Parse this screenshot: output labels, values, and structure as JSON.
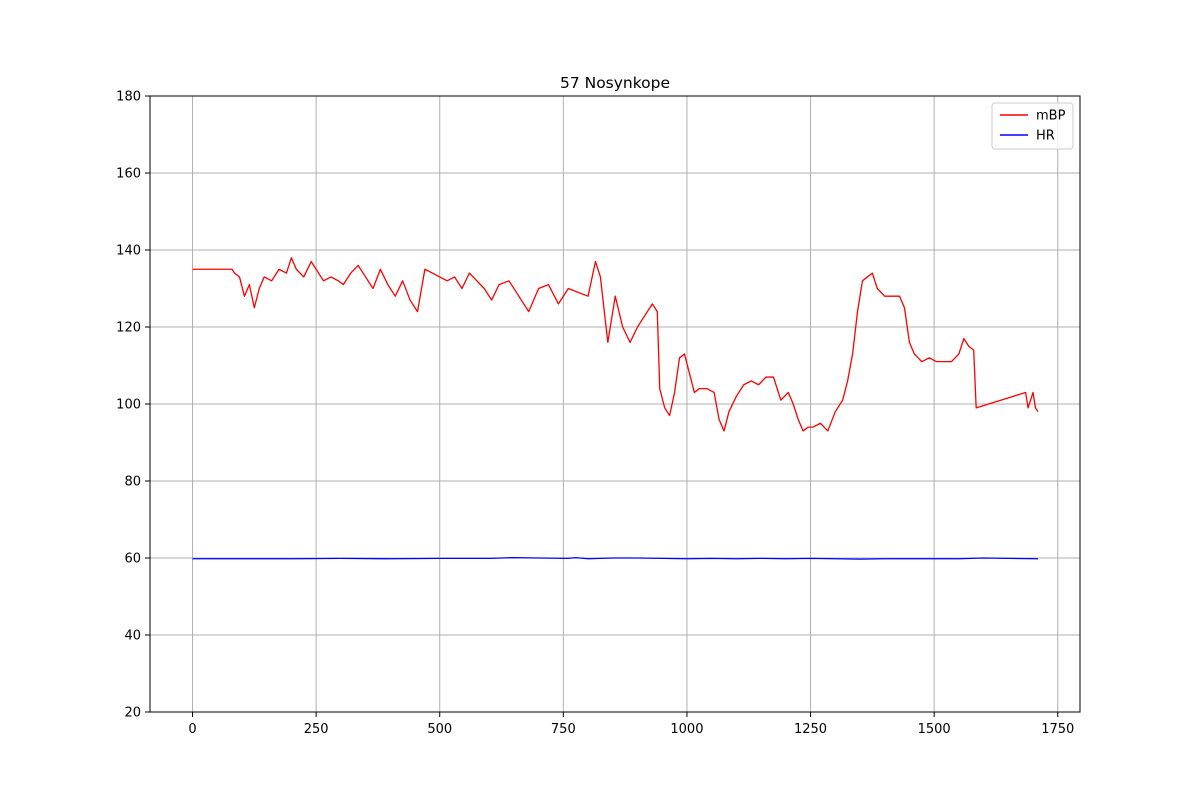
{
  "chart_data": {
    "type": "line",
    "title": "57 Nosynkope",
    "xlabel": "",
    "ylabel": "",
    "xlim": [
      -86,
      1795
    ],
    "ylim": [
      20,
      180
    ],
    "xticks": [
      0,
      250,
      500,
      750,
      1000,
      1250,
      1500,
      1750
    ],
    "yticks": [
      20,
      40,
      60,
      80,
      100,
      120,
      140,
      160,
      180
    ],
    "grid": true,
    "legend_position": "top-right",
    "series": [
      {
        "name": "mBP",
        "color": "#ff0000",
        "x": [
          0,
          80,
          85,
          95,
          105,
          115,
          125,
          135,
          145,
          160,
          175,
          190,
          200,
          210,
          225,
          240,
          250,
          265,
          280,
          295,
          305,
          320,
          335,
          350,
          365,
          380,
          395,
          410,
          425,
          440,
          455,
          470,
          485,
          500,
          515,
          530,
          545,
          560,
          575,
          590,
          605,
          620,
          640,
          660,
          680,
          700,
          720,
          740,
          760,
          780,
          800,
          815,
          825,
          840,
          855,
          870,
          885,
          900,
          915,
          930,
          940,
          945,
          955,
          965,
          975,
          985,
          995,
          1005,
          1015,
          1025,
          1040,
          1055,
          1065,
          1075,
          1085,
          1100,
          1115,
          1130,
          1145,
          1160,
          1175,
          1190,
          1205,
          1215,
          1225,
          1235,
          1245,
          1255,
          1270,
          1285,
          1300,
          1315,
          1325,
          1335,
          1345,
          1355,
          1365,
          1375,
          1385,
          1400,
          1415,
          1430,
          1440,
          1450,
          1460,
          1475,
          1490,
          1505,
          1520,
          1535,
          1550,
          1560,
          1570,
          1580,
          1585,
          1685,
          1690,
          1695,
          1700,
          1705,
          1710
        ],
        "values": [
          135,
          135,
          134,
          133,
          128,
          131,
          125,
          130,
          133,
          132,
          135,
          134,
          138,
          135,
          133,
          137,
          135,
          132,
          133,
          132,
          131,
          134,
          136,
          133,
          130,
          135,
          131,
          128,
          132,
          127,
          124,
          135,
          134,
          133,
          132,
          133,
          130,
          134,
          132,
          130,
          127,
          131,
          132,
          128,
          124,
          130,
          131,
          126,
          130,
          129,
          128,
          137,
          133,
          116,
          128,
          120,
          116,
          120,
          123,
          126,
          124,
          104,
          99,
          97,
          103,
          112,
          113,
          108,
          103,
          104,
          104,
          103,
          96,
          93,
          98,
          102,
          105,
          106,
          105,
          107,
          107,
          101,
          103,
          100,
          96,
          93,
          94,
          94,
          95,
          93,
          98,
          101,
          106,
          113,
          124,
          132,
          133,
          134,
          130,
          128,
          128,
          128,
          125,
          116,
          113,
          111,
          112,
          111,
          111,
          111,
          113,
          117,
          115,
          114,
          99,
          103,
          99,
          101,
          103,
          99,
          98
        ]
      },
      {
        "name": "HR",
        "color": "#0000ff",
        "x": [
          0,
          100,
          200,
          300,
          400,
          500,
          600,
          650,
          700,
          760,
          775,
          800,
          850,
          900,
          950,
          1000,
          1050,
          1100,
          1150,
          1200,
          1250,
          1300,
          1350,
          1400,
          1450,
          1500,
          1550,
          1600,
          1650,
          1710
        ],
        "values": [
          59.8,
          59.8,
          59.8,
          59.9,
          59.8,
          59.9,
          59.9,
          60.1,
          60.0,
          59.9,
          60.1,
          59.8,
          60.0,
          60.0,
          59.9,
          59.8,
          59.9,
          59.8,
          59.9,
          59.8,
          59.9,
          59.8,
          59.7,
          59.8,
          59.8,
          59.8,
          59.8,
          60.0,
          59.9,
          59.8
        ]
      }
    ]
  }
}
